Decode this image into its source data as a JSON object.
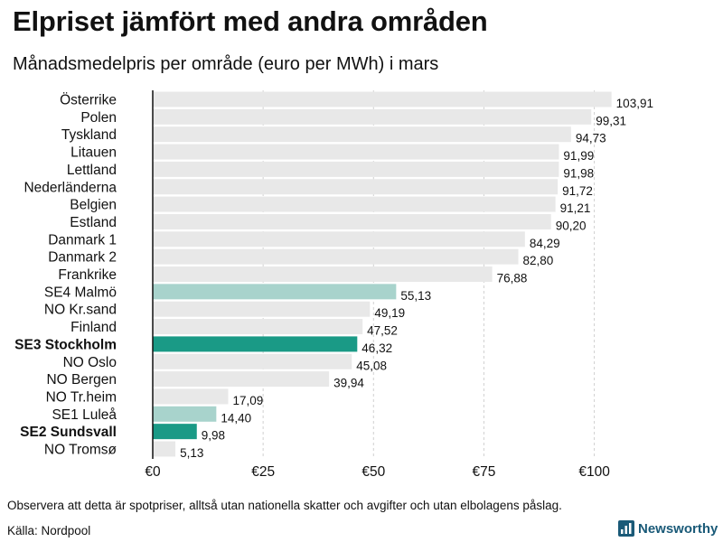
{
  "title": "Elpriset jämfört med andra områden",
  "subtitle": "Månadsmedelpris per område (euro per MWh) i mars",
  "footer": {
    "note": "Observera att detta är spotpriser, alltså utan nationella skatter och avgifter och utan elbolagens påslag.",
    "source": "Källa: Nordpool",
    "brand": "Newsworthy"
  },
  "colors": {
    "bar_default": "#e8e8e8",
    "bar_light": "#a8d3cc",
    "bar_highlight": "#1a9a86",
    "grid": "#d0d0d0",
    "axis": "#111111",
    "brand": "#1a5a78"
  },
  "chart_data": {
    "type": "bar",
    "orientation": "horizontal",
    "title": "Elpriset jämfört med andra områden",
    "subtitle": "Månadsmedelpris per område (euro per MWh) i mars",
    "xlabel": "",
    "ylabel": "",
    "xlim": [
      0,
      105
    ],
    "xticks": [
      0,
      25,
      50,
      75,
      100
    ],
    "xtick_labels": [
      "€0",
      "€25",
      "€50",
      "€75",
      "€100"
    ],
    "grid": "vertical dashed",
    "categories": [
      "Österrike",
      "Polen",
      "Tyskland",
      "Litauen",
      "Lettland",
      "Nederländerna",
      "Belgien",
      "Estland",
      "Danmark  1",
      "Danmark  2",
      "Frankrike",
      "SE4  Malmö",
      "NO Kr.sand",
      "Finland",
      "SE3 Stockholm",
      "NO Oslo",
      "NO Bergen",
      "NO Tr.heim",
      "SE1  Luleå",
      "SE2 Sundsvall",
      "NO Tromsø"
    ],
    "values": [
      103.91,
      99.31,
      94.73,
      91.99,
      91.98,
      91.72,
      91.21,
      90.2,
      84.29,
      82.8,
      76.88,
      55.13,
      49.19,
      47.52,
      46.32,
      45.08,
      39.94,
      17.09,
      14.4,
      9.98,
      5.13
    ],
    "value_labels": [
      "103,91",
      "99,31",
      "94,73",
      "91,99",
      "91,98",
      "91,72",
      "91,21",
      "90,20",
      "84,29",
      "82,80",
      "76,88",
      "55,13",
      "49,19",
      "47,52",
      "46,32",
      "45,08",
      "39,94",
      "17,09",
      "14,40",
      "9,98",
      "5,13"
    ],
    "highlight": [
      "default",
      "default",
      "default",
      "default",
      "default",
      "default",
      "default",
      "default",
      "default",
      "default",
      "default",
      "light",
      "default",
      "default",
      "strong",
      "default",
      "default",
      "default",
      "light",
      "strong",
      "default"
    ],
    "bold_labels": [
      false,
      false,
      false,
      false,
      false,
      false,
      false,
      false,
      false,
      false,
      false,
      false,
      false,
      false,
      true,
      false,
      false,
      false,
      false,
      true,
      false
    ]
  }
}
